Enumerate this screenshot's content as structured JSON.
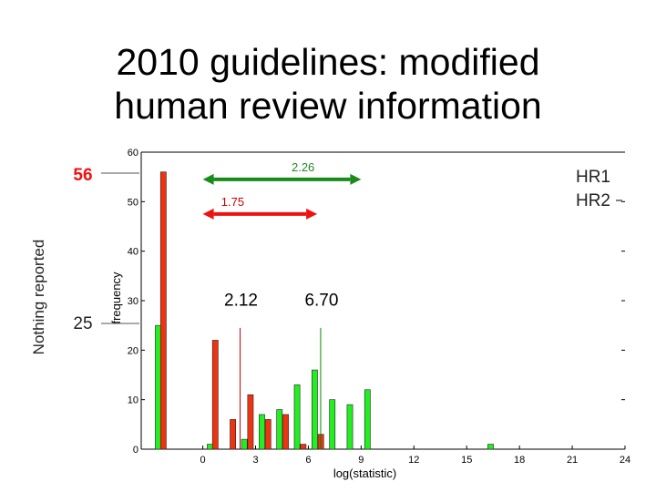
{
  "title_lines": [
    "2010 guidelines: modified",
    "human review information"
  ],
  "chart_data": {
    "type": "bar",
    "xlabel": "log(statistic)",
    "ylabel": "frequency",
    "xlim": [
      -3.5,
      24
    ],
    "ylim": [
      0,
      60
    ],
    "x_ticks": [
      0,
      3,
      6,
      9,
      12,
      15,
      18,
      21,
      24
    ],
    "y_ticks": [
      0,
      10,
      20,
      30,
      40,
      50,
      60
    ],
    "legend": {
      "position": "top-right",
      "entries": [
        "HR1",
        "HR2"
      ]
    },
    "series": [
      {
        "name": "HR1",
        "color": "#22ee22",
        "bars": [
          {
            "x": -2.7,
            "value": 25
          },
          {
            "x": 0.25,
            "value": 1
          },
          {
            "x": 2.2,
            "value": 2
          },
          {
            "x": 3.2,
            "value": 7
          },
          {
            "x": 4.2,
            "value": 8
          },
          {
            "x": 5.2,
            "value": 13
          },
          {
            "x": 6.2,
            "value": 16
          },
          {
            "x": 7.2,
            "value": 10
          },
          {
            "x": 8.2,
            "value": 9
          },
          {
            "x": 9.2,
            "value": 12
          },
          {
            "x": 16.2,
            "value": 1
          }
        ]
      },
      {
        "name": "HR2",
        "color": "#ee3311",
        "bars": [
          {
            "x": -2.4,
            "value": 56
          },
          {
            "x": 0.55,
            "value": 22
          },
          {
            "x": 1.55,
            "value": 6
          },
          {
            "x": 2.55,
            "value": 11
          },
          {
            "x": 3.55,
            "value": 6
          },
          {
            "x": 4.55,
            "value": 7
          },
          {
            "x": 5.55,
            "value": 1
          },
          {
            "x": 6.55,
            "value": 3
          }
        ]
      }
    ],
    "markers": [
      {
        "label": "2.12",
        "x": 2.12,
        "color": "#cc0000"
      },
      {
        "label": "6.70",
        "x": 6.7,
        "color": "#008800"
      }
    ],
    "ranges": [
      {
        "label": "2.26",
        "from": 0,
        "to": 9,
        "y": 54.5,
        "color": "#1a8a1a",
        "label_color": "#228822"
      },
      {
        "label": "1.75",
        "from": 0,
        "to": 6.5,
        "y": 47.5,
        "color": "#ee1111",
        "label_color": "#cc0000"
      }
    ],
    "annotations": {
      "nothing_reported": "Nothing reported",
      "count_hr2": "56",
      "count_hr1": "25",
      "count_hr2_color": "#ee1111"
    }
  }
}
